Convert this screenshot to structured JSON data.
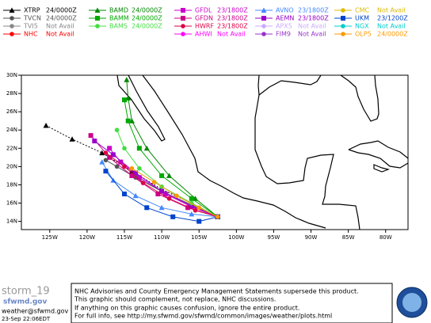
{
  "chart_data": {
    "type": "line",
    "xlim": [
      -128.8,
      -77
    ],
    "ylim": [
      13.1,
      30
    ],
    "xticks": [
      {
        "value": -125,
        "label": "125W"
      },
      {
        "value": -120,
        "label": "120W"
      },
      {
        "value": -115,
        "label": "115W"
      },
      {
        "value": -110,
        "label": "110W"
      },
      {
        "value": -105,
        "label": "105W"
      },
      {
        "value": -100,
        "label": "100W"
      },
      {
        "value": -95,
        "label": "95W"
      },
      {
        "value": -90,
        "label": "90W"
      },
      {
        "value": -85,
        "label": "85W"
      },
      {
        "value": -80,
        "label": "80W"
      }
    ],
    "yticks": [
      {
        "value": 14,
        "label": "14N"
      },
      {
        "value": 16,
        "label": "16N"
      },
      {
        "value": 18,
        "label": "18N"
      },
      {
        "value": 20,
        "label": "20N"
      },
      {
        "value": 22,
        "label": "22N"
      },
      {
        "value": 24,
        "label": "24N"
      },
      {
        "value": 26,
        "label": "26N"
      },
      {
        "value": 28,
        "label": "28N"
      },
      {
        "value": 30,
        "label": "30N"
      }
    ],
    "series": [
      {
        "name": "XTRP",
        "status": "24/0000Z",
        "color": "#000000",
        "marker": "triangle",
        "style": "dotted",
        "x": [
          -102.5,
          -106,
          -110,
          -114,
          -118,
          -122,
          -125.5
        ],
        "values": [
          14.5,
          16,
          17.5,
          19.5,
          21.5,
          23,
          24.5
        ]
      },
      {
        "name": "BAMD",
        "status": "24/0000Z",
        "color": "#008800",
        "marker": "triangle",
        "x": [
          -102.5,
          -105.5,
          -109,
          -112,
          -114,
          -114.5,
          -114.7
        ],
        "values": [
          14.5,
          16.5,
          19,
          22,
          25,
          27.5,
          29.5
        ]
      },
      {
        "name": "GFDL",
        "status": "23/1800Z",
        "color": "#cc00cc",
        "marker": "square",
        "x": [
          -102.5,
          -106,
          -109.5,
          -113,
          -115.5,
          -117
        ],
        "values": [
          14.5,
          15.6,
          17,
          18.8,
          20.5,
          22
        ]
      },
      {
        "name": "AVNO",
        "status": "23/1800Z",
        "color": "#4488ff",
        "marker": "triangle",
        "x": [
          -102.5,
          -106,
          -110,
          -113.5,
          -116.5,
          -118
        ],
        "values": [
          14.5,
          14.8,
          15.5,
          16.8,
          18.5,
          20.5
        ]
      },
      {
        "name": "CMC",
        "status": "Not Avail",
        "color": "#ddbb00",
        "marker": "circle",
        "x": [],
        "values": []
      },
      {
        "name": "TVCN",
        "status": "24/0000Z",
        "color": "#555555",
        "marker": "circle",
        "x": [
          -102.5,
          -106,
          -110,
          -113.5,
          -116,
          -117.5
        ],
        "values": [
          14.5,
          15.8,
          17.3,
          18.8,
          20,
          20.7
        ]
      },
      {
        "name": "BAMM",
        "status": "24/0000Z",
        "color": "#00aa00",
        "marker": "square",
        "x": [
          -102.5,
          -106,
          -110,
          -113,
          -114.5,
          -115
        ],
        "values": [
          14.5,
          16.5,
          19,
          22,
          25,
          27.3
        ]
      },
      {
        "name": "GFDN",
        "status": "23/1800Z",
        "color": "#cc0088",
        "marker": "square",
        "x": [
          -102.5,
          -106.5,
          -110.5,
          -114,
          -117,
          -119.5
        ],
        "values": [
          14.5,
          15.5,
          17,
          19,
          21,
          23.4
        ]
      },
      {
        "name": "AEMN",
        "status": "23/1800Z",
        "color": "#9900cc",
        "marker": "square",
        "x": [
          -102.5,
          -106,
          -110,
          -113.5,
          -116.5,
          -119
        ],
        "values": [
          14.5,
          15.7,
          17.3,
          19.3,
          21.3,
          22.8
        ]
      },
      {
        "name": "UKM",
        "status": "23/1200Z",
        "color": "#0044cc",
        "marker": "square",
        "x": [
          -102.5,
          -105,
          -108.5,
          -112,
          -115,
          -117.5
        ],
        "values": [
          14.5,
          14,
          14.5,
          15.5,
          17,
          19.5
        ]
      },
      {
        "name": "TVI5",
        "status": "Not Avail",
        "color": "#888888",
        "marker": "circle",
        "x": [],
        "values": []
      },
      {
        "name": "BAMS",
        "status": "24/0000Z",
        "color": "#44dd44",
        "marker": "circle",
        "x": [
          -102.5,
          -106,
          -110,
          -113,
          -115,
          -116
        ],
        "values": [
          14.5,
          16,
          17.8,
          19.8,
          22,
          24
        ]
      },
      {
        "name": "HWRF",
        "status": "23/1800Z",
        "color": "#dd0044",
        "marker": "circle",
        "x": [
          -102.5,
          -105.5,
          -109,
          -112.5,
          -115,
          -117.5
        ],
        "values": [
          14.5,
          15.2,
          16.5,
          18.2,
          20,
          21.5
        ]
      },
      {
        "name": "APX5",
        "status": "Not Avail",
        "color": "#ccaaff",
        "marker": "circle",
        "x": [],
        "values": []
      },
      {
        "name": "NGX",
        "status": "Not Avail",
        "color": "#00cccc",
        "marker": "circle",
        "x": [],
        "values": []
      },
      {
        "name": "NHC",
        "status": "Not Avail",
        "color": "#ff0000",
        "marker": "circle",
        "x": [],
        "values": []
      },
      {
        "name": "AHWI",
        "status": "Not Avail",
        "color": "#ff00ff",
        "marker": "circle",
        "x": [],
        "values": []
      },
      {
        "name": "FIM9",
        "status": "Not Avail",
        "color": "#9933cc",
        "marker": "circle",
        "x": [],
        "values": []
      },
      {
        "name": "OLP5",
        "status": "24/0000Z",
        "color": "#ff9900",
        "marker": "circle",
        "x": [
          -102.5,
          -105,
          -108,
          -111,
          -114
        ],
        "values": [
          14.5,
          15.5,
          16.8,
          18.3,
          19.8
        ]
      }
    ]
  },
  "footer": {
    "logo": "storm_19",
    "site": "sfwmd.gov",
    "email": "weather@sfwmd.gov",
    "timestamp": "23-Sep 22:06EDT",
    "disclaimer": [
      "NHC Advisories and County Emergency Management Statements supersede this product.",
      "This graphic should complement, not replace, NHC discussions.",
      "If anything on this graphic causes confusion, ignore the entire product.",
      "For full info, see  http://my.sfwmd.gov/sfwmd/common/images/weather/plots.html"
    ]
  }
}
